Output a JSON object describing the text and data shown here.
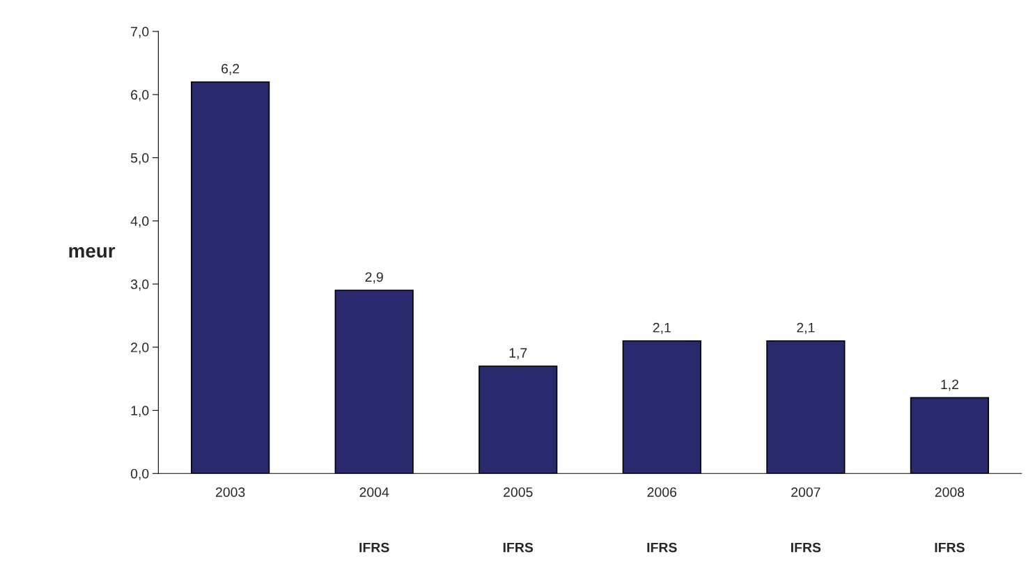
{
  "chart_data": {
    "type": "bar",
    "ylabel": "meur",
    "categories": [
      "2003",
      "2004",
      "2005",
      "2006",
      "2007",
      "2008"
    ],
    "values": [
      6.2,
      2.9,
      1.7,
      2.1,
      2.1,
      1.2
    ],
    "value_labels": [
      "6,2",
      "2,9",
      "1,7",
      "2,1",
      "2,1",
      "1,2"
    ],
    "color": "#29296e",
    "ylim": [
      0,
      7
    ],
    "yticks": [
      {
        "value": 0,
        "label": "0,0"
      },
      {
        "value": 1,
        "label": "1,0"
      },
      {
        "value": 2,
        "label": "2,0"
      },
      {
        "value": 3,
        "label": "3,0"
      },
      {
        "value": 4,
        "label": "4,0"
      },
      {
        "value": 5,
        "label": "5,0"
      },
      {
        "value": 6,
        "label": "6,0"
      },
      {
        "value": 7,
        "label": "7,0"
      }
    ],
    "annotations": [
      "IFRS",
      "IFRS",
      "IFRS",
      "IFRS",
      "IFRS"
    ],
    "grid": false
  }
}
